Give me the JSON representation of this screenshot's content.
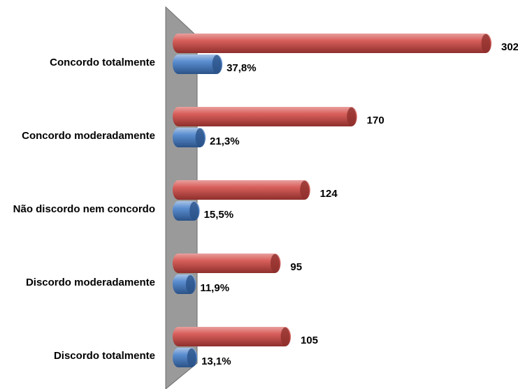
{
  "chart_data": {
    "type": "bar",
    "orientation": "horizontal",
    "categories": [
      "Concordo totalmente",
      "Concordo moderadamente",
      "Não discordo nem concordo",
      "Discordo moderadamente",
      "Discordo totalmente"
    ],
    "series": [
      {
        "color": "#c0504d",
        "values": [
          302,
          170,
          124,
          95,
          105
        ]
      },
      {
        "color": "#4f81bd",
        "values": [
          37.8,
          21.3,
          15.5,
          11.9,
          13.1
        ],
        "value_labels": [
          "37,8%",
          "21,3%",
          "15,5%",
          "11,9%",
          "13,1%"
        ]
      }
    ]
  }
}
